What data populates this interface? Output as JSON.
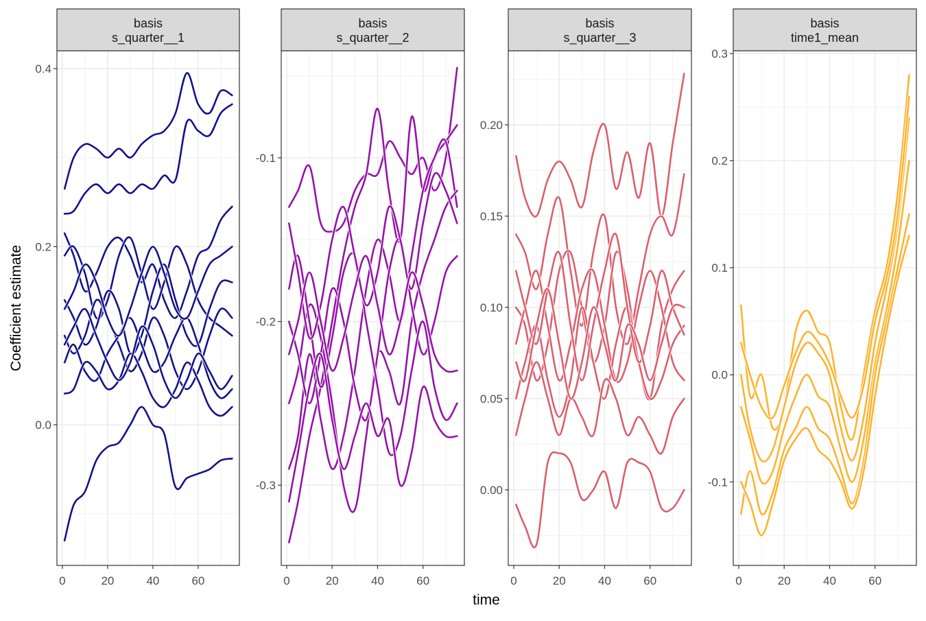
{
  "chart_data": {
    "type": "line",
    "xlabel": "time",
    "ylabel": "Coefficient estimate",
    "grid": true,
    "x": [
      1,
      5,
      10,
      15,
      20,
      25,
      30,
      35,
      40,
      45,
      50,
      55,
      60,
      65,
      70,
      75
    ],
    "panels": [
      {
        "strip": [
          "basis",
          "s_quarter__1"
        ],
        "color": "#13128A",
        "ylim": [
          -0.158,
          0.42
        ],
        "xlim": [
          -2.4,
          78.2
        ],
        "yticks": [
          0.0,
          0.2,
          0.4
        ],
        "ytick_labels": [
          "0.0",
          "0.2",
          "0.4"
        ],
        "xticks": [
          0,
          20,
          40,
          60
        ],
        "xtick_labels": [
          "0",
          "20",
          "40",
          "60"
        ],
        "series": [
          [
            0.265,
            0.3,
            0.315,
            0.31,
            0.3,
            0.31,
            0.3,
            0.315,
            0.325,
            0.33,
            0.35,
            0.395,
            0.36,
            0.35,
            0.375,
            0.37
          ],
          [
            0.237,
            0.24,
            0.26,
            0.27,
            0.26,
            0.27,
            0.26,
            0.27,
            0.265,
            0.28,
            0.275,
            0.34,
            0.33,
            0.325,
            0.35,
            0.36
          ],
          [
            -0.13,
            -0.09,
            -0.075,
            -0.04,
            -0.025,
            -0.02,
            0.0,
            0.02,
            0.0,
            -0.01,
            -0.07,
            -0.06,
            -0.055,
            -0.05,
            -0.04,
            -0.038
          ],
          [
            0.215,
            0.19,
            0.15,
            0.17,
            0.2,
            0.21,
            0.19,
            0.16,
            0.18,
            0.14,
            0.12,
            0.15,
            0.19,
            0.2,
            0.23,
            0.245
          ],
          [
            0.19,
            0.2,
            0.17,
            0.12,
            0.14,
            0.19,
            0.21,
            0.17,
            0.13,
            0.16,
            0.2,
            0.18,
            0.14,
            0.12,
            0.11,
            0.1
          ],
          [
            0.14,
            0.12,
            0.09,
            0.11,
            0.15,
            0.13,
            0.08,
            0.1,
            0.15,
            0.18,
            0.14,
            0.1,
            0.09,
            0.13,
            0.16,
            0.16
          ],
          [
            0.1,
            0.08,
            0.1,
            0.14,
            0.12,
            0.09,
            0.06,
            0.08,
            0.12,
            0.1,
            0.06,
            0.04,
            0.06,
            0.1,
            0.13,
            0.12
          ],
          [
            0.07,
            0.09,
            0.06,
            0.05,
            0.08,
            0.1,
            0.12,
            0.09,
            0.06,
            0.07,
            0.1,
            0.12,
            0.09,
            0.05,
            0.03,
            0.04
          ],
          [
            0.035,
            0.04,
            0.07,
            0.06,
            0.04,
            0.05,
            0.08,
            0.06,
            0.03,
            0.02,
            0.04,
            0.07,
            0.05,
            0.02,
            0.01,
            0.02
          ],
          [
            0.13,
            0.15,
            0.18,
            0.16,
            0.12,
            0.1,
            0.13,
            0.17,
            0.2,
            0.17,
            0.13,
            0.12,
            0.15,
            0.18,
            0.19,
            0.2
          ],
          [
            0.09,
            0.11,
            0.13,
            0.1,
            0.07,
            0.05,
            0.07,
            0.11,
            0.09,
            0.05,
            0.03,
            0.05,
            0.08,
            0.06,
            0.04,
            0.055
          ]
        ]
      },
      {
        "strip": [
          "basis",
          "s_quarter__2"
        ],
        "color": "#9413A8",
        "ylim": [
          -0.349,
          -0.0346
        ],
        "xlim": [
          -2.4,
          78.2
        ],
        "yticks": [
          -0.3,
          -0.2,
          -0.1
        ],
        "ytick_labels": [
          "-0.3",
          "-0.2",
          "-0.1"
        ],
        "xticks": [
          0,
          20,
          40,
          60
        ],
        "xtick_labels": [
          "0",
          "20",
          "40",
          "60"
        ],
        "series": [
          [
            -0.13,
            -0.12,
            -0.105,
            -0.14,
            -0.145,
            -0.14,
            -0.12,
            -0.11,
            -0.11,
            -0.09,
            -0.1,
            -0.11,
            -0.1,
            -0.12,
            -0.1,
            -0.045
          ],
          [
            -0.335,
            -0.31,
            -0.27,
            -0.24,
            -0.2,
            -0.16,
            -0.13,
            -0.11,
            -0.07,
            -0.12,
            -0.15,
            -0.075,
            -0.12,
            -0.1,
            -0.09,
            -0.08
          ],
          [
            -0.29,
            -0.27,
            -0.22,
            -0.26,
            -0.29,
            -0.27,
            -0.23,
            -0.18,
            -0.15,
            -0.17,
            -0.2,
            -0.16,
            -0.12,
            -0.1,
            -0.09,
            -0.13
          ],
          [
            -0.25,
            -0.23,
            -0.19,
            -0.21,
            -0.25,
            -0.3,
            -0.315,
            -0.27,
            -0.22,
            -0.23,
            -0.25,
            -0.2,
            -0.17,
            -0.15,
            -0.13,
            -0.12
          ],
          [
            -0.2,
            -0.22,
            -0.25,
            -0.22,
            -0.18,
            -0.2,
            -0.24,
            -0.26,
            -0.22,
            -0.17,
            -0.15,
            -0.19,
            -0.22,
            -0.2,
            -0.17,
            -0.16
          ],
          [
            -0.18,
            -0.16,
            -0.2,
            -0.24,
            -0.21,
            -0.17,
            -0.16,
            -0.2,
            -0.24,
            -0.28,
            -0.27,
            -0.23,
            -0.2,
            -0.24,
            -0.26,
            -0.25
          ],
          [
            -0.31,
            -0.28,
            -0.24,
            -0.22,
            -0.26,
            -0.29,
            -0.27,
            -0.25,
            -0.27,
            -0.26,
            -0.3,
            -0.28,
            -0.24,
            -0.26,
            -0.27,
            -0.27
          ],
          [
            -0.14,
            -0.17,
            -0.21,
            -0.19,
            -0.15,
            -0.13,
            -0.16,
            -0.19,
            -0.17,
            -0.13,
            -0.15,
            -0.18,
            -0.14,
            -0.11,
            -0.12,
            -0.14
          ],
          [
            -0.22,
            -0.2,
            -0.17,
            -0.2,
            -0.23,
            -0.21,
            -0.18,
            -0.16,
            -0.19,
            -0.22,
            -0.2,
            -0.17,
            -0.19,
            -0.22,
            -0.23,
            -0.23
          ]
        ]
      },
      {
        "strip": [
          "basis",
          "s_quarter__3"
        ],
        "color": "#DA5F6C",
        "ylim": [
          -0.0414,
          0.2406
        ],
        "xlim": [
          -2.4,
          78.2
        ],
        "yticks": [
          0.0,
          0.05,
          0.1,
          0.15,
          0.2
        ],
        "ytick_labels": [
          "0.00",
          "0.05",
          "0.10",
          "0.15",
          "0.20"
        ],
        "xticks": [
          0,
          20,
          40,
          60
        ],
        "xtick_labels": [
          "0",
          "20",
          "40",
          "60"
        ],
        "series": [
          [
            0.183,
            0.16,
            0.15,
            0.17,
            0.18,
            0.17,
            0.155,
            0.185,
            0.2,
            0.165,
            0.185,
            0.16,
            0.19,
            0.15,
            0.19,
            0.228
          ],
          [
            -0.008,
            -0.02,
            -0.03,
            0.015,
            0.02,
            0.015,
            -0.005,
            0.0,
            0.01,
            -0.01,
            0.015,
            0.015,
            0.01,
            -0.01,
            -0.01,
            0.0
          ],
          [
            0.14,
            0.13,
            0.11,
            0.14,
            0.16,
            0.12,
            0.09,
            0.13,
            0.15,
            0.1,
            0.08,
            0.11,
            0.14,
            0.15,
            0.14,
            0.173
          ],
          [
            0.1,
            0.09,
            0.06,
            0.08,
            0.12,
            0.13,
            0.1,
            0.07,
            0.09,
            0.13,
            0.11,
            0.07,
            0.05,
            0.09,
            0.11,
            0.12
          ],
          [
            0.08,
            0.1,
            0.12,
            0.09,
            0.06,
            0.08,
            0.11,
            0.12,
            0.09,
            0.06,
            0.07,
            0.1,
            0.12,
            0.1,
            0.07,
            0.06
          ],
          [
            0.05,
            0.07,
            0.09,
            0.06,
            0.04,
            0.06,
            0.1,
            0.07,
            0.05,
            0.08,
            0.1,
            0.07,
            0.05,
            0.06,
            0.08,
            0.09
          ],
          [
            0.12,
            0.1,
            0.08,
            0.11,
            0.13,
            0.09,
            0.06,
            0.09,
            0.12,
            0.14,
            0.1,
            0.07,
            0.09,
            0.12,
            0.1,
            0.085
          ],
          [
            0.03,
            0.05,
            0.07,
            0.05,
            0.03,
            0.05,
            0.04,
            0.03,
            0.06,
            0.05,
            0.03,
            0.04,
            0.03,
            0.02,
            0.04,
            0.05
          ],
          [
            0.07,
            0.06,
            0.09,
            0.11,
            0.08,
            0.05,
            0.07,
            0.1,
            0.08,
            0.06,
            0.09,
            0.08,
            0.06,
            0.08,
            0.1,
            0.1
          ]
        ]
      },
      {
        "strip": [
          "basis",
          "time1_mean"
        ],
        "color": "#FDB32F",
        "ylim": [
          -0.178,
          0.3026
        ],
        "xlim": [
          -2.4,
          78.2
        ],
        "yticks": [
          -0.1,
          0.0,
          0.1,
          0.2,
          0.3
        ],
        "ytick_labels": [
          "-0.1",
          "0.0",
          "0.1",
          "0.2",
          "0.3"
        ],
        "xticks": [
          0,
          20,
          40,
          60
        ],
        "xtick_labels": [
          "0",
          "20",
          "40",
          "60"
        ],
        "series": [
          [
            0.065,
            -0.02,
            0.0,
            -0.05,
            -0.03,
            0.04,
            0.06,
            0.04,
            0.03,
            -0.03,
            -0.06,
            0.0,
            0.06,
            0.1,
            0.17,
            0.28
          ],
          [
            0.0,
            -0.05,
            -0.08,
            -0.07,
            -0.03,
            0.01,
            0.03,
            0.02,
            0.0,
            -0.05,
            -0.08,
            -0.04,
            0.03,
            0.08,
            0.14,
            0.24
          ],
          [
            -0.03,
            -0.06,
            -0.1,
            -0.09,
            -0.05,
            -0.02,
            0.0,
            -0.02,
            -0.03,
            -0.07,
            -0.1,
            -0.06,
            0.01,
            0.06,
            0.12,
            0.2
          ],
          [
            -0.13,
            -0.09,
            -0.13,
            -0.11,
            -0.07,
            -0.05,
            -0.03,
            -0.05,
            -0.06,
            -0.09,
            -0.12,
            -0.08,
            0.0,
            0.05,
            0.1,
            0.15
          ],
          [
            -0.1,
            -0.12,
            -0.15,
            -0.12,
            -0.08,
            -0.06,
            -0.05,
            -0.07,
            -0.08,
            -0.1,
            -0.125,
            -0.09,
            -0.02,
            0.04,
            0.09,
            0.13
          ],
          [
            0.03,
            0.0,
            -0.03,
            -0.04,
            -0.01,
            0.02,
            0.04,
            0.03,
            0.01,
            -0.02,
            -0.04,
            -0.01,
            0.05,
            0.09,
            0.15,
            0.26
          ]
        ]
      }
    ]
  }
}
